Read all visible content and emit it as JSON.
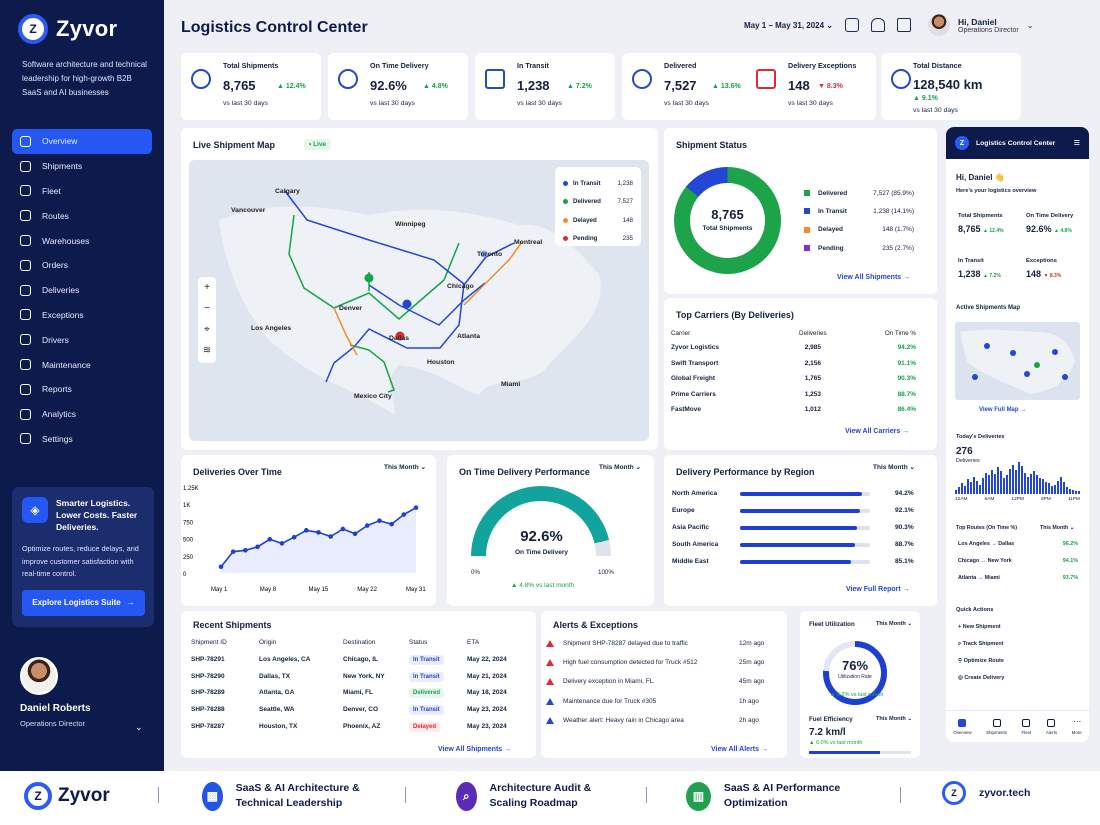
{
  "brand": {
    "name": "Zyvor",
    "tagline": "Software architecture and technical leadership for high-growth B2B SaaS and AI businesses"
  },
  "nav": [
    "Overview",
    "Shipments",
    "Fleet",
    "Routes",
    "Warehouses",
    "Orders",
    "Deliveries",
    "Exceptions",
    "Drivers",
    "Maintenance",
    "Reports",
    "Analytics",
    "Settings"
  ],
  "promo": {
    "title": "Smarter Logistics. Lower Costs. Faster Deliveries.",
    "text": "Optimize routes, reduce delays, and improve customer satisfaction with real-time control.",
    "button": "Explore Logistics Suite"
  },
  "profile": {
    "name": "Daniel Roberts",
    "role": "Operations Director"
  },
  "header": {
    "title": "Logistics Control Center",
    "date_range": "May 1 – May 31, 2024",
    "user_greeting": "Hi, Daniel",
    "user_role": "Operations Director"
  },
  "kpis": [
    {
      "label": "Total Shipments",
      "value": "8,765",
      "change": "▲ 12.4%",
      "sub": "vs last 30 days"
    },
    {
      "label": "On Time Delivery",
      "value": "92.6%",
      "change": "▲ 4.8%",
      "sub": "vs last 30 days"
    },
    {
      "label": "In Transit",
      "value": "1,238",
      "change": "▲ 7.2%",
      "sub": "vs last 30 days"
    },
    {
      "label": "Delivered",
      "value": "7,527",
      "change": "▲ 13.6%",
      "sub": "vs last 30 days"
    },
    {
      "label": "Delivery Exceptions",
      "value": "148",
      "change": "▼ 8.3%",
      "sub": "vs last 30 days"
    },
    {
      "label": "Total Distance",
      "value": "128,540 km",
      "change": "▲ 9.1%",
      "sub": "vs last 30 days"
    }
  ],
  "map": {
    "title": "Live Shipment Map",
    "badge": "• Live",
    "cities": [
      "Calgary",
      "Winnipeg",
      "Vancouver",
      "Toronto",
      "Montreal",
      "Chicago",
      "Denver",
      "Los Angeles",
      "Dallas",
      "Atlanta",
      "Houston",
      "Miami",
      "Mexico City"
    ],
    "legend": [
      {
        "label": "In Transit",
        "value": "1,238",
        "color": "#2346d4"
      },
      {
        "label": "Delivered",
        "value": "7,527",
        "color": "#16a34a"
      },
      {
        "label": "Delayed",
        "value": "148",
        "color": "#f28c28"
      },
      {
        "label": "Pending",
        "value": "235",
        "color": "#d72c3a"
      }
    ]
  },
  "status": {
    "title": "Shipment Status",
    "total": "8,765",
    "total_label": "Total Shipments",
    "rows": [
      {
        "label": "Delivered",
        "value": "7,527 (85.9%)",
        "color": "#1da34a"
      },
      {
        "label": "In Transit",
        "value": "1,238 (14.1%)",
        "color": "#2346d4"
      },
      {
        "label": "Delayed",
        "value": "148 (1.7%)",
        "color": "#f28c28"
      },
      {
        "label": "Pending",
        "value": "235 (2.7%)",
        "color": "#7b35d8"
      }
    ],
    "link": "View All Shipments →"
  },
  "carriers": {
    "title": "Top Carriers (By Deliveries)",
    "headers": [
      "Carrier",
      "Deliveries",
      "On Time %"
    ],
    "rows": [
      [
        "Zyvor Logistics",
        "2,985",
        "94.2%"
      ],
      [
        "Swift Transport",
        "2,156",
        "91.1%"
      ],
      [
        "Global Freight",
        "1,765",
        "90.3%"
      ],
      [
        "Prime Carriers",
        "1,253",
        "88.7%"
      ],
      [
        "FastMove",
        "1,012",
        "86.4%"
      ]
    ],
    "link": "View All Carriers →"
  },
  "deliveries_chart": {
    "title": "Deliveries Over Time",
    "period": "This Month"
  },
  "chart_data": {
    "type": "line",
    "title": "Deliveries Over Time",
    "xlabel": "",
    "ylabel": "",
    "x_ticks": [
      "May 1",
      "May 8",
      "May 15",
      "May 22",
      "May 31"
    ],
    "y_ticks": [
      "1.25K",
      "1K",
      "750",
      "500",
      "250",
      "0"
    ],
    "ylim": [
      0,
      1250
    ],
    "series": [
      {
        "values": [
          90,
          310,
          330,
          380,
          490,
          430,
          520,
          620,
          590,
          530,
          640,
          570,
          690,
          760,
          710,
          850,
          950
        ]
      }
    ]
  },
  "ontime": {
    "title": "On Time Delivery Performance",
    "period": "This Month",
    "value": "92.6%",
    "label": "On Time Delivery",
    "min": "0%",
    "max": "100%",
    "change": "▲ 4.8% vs last month",
    "fraction": 0.926
  },
  "regions": {
    "title": "Delivery Performance by Region",
    "period": "This Month",
    "rows": [
      {
        "name": "North America",
        "value": "94.2%",
        "pct": 94.2
      },
      {
        "name": "Europe",
        "value": "92.1%",
        "pct": 92.1
      },
      {
        "name": "Asia Pacific",
        "value": "90.3%",
        "pct": 90.3
      },
      {
        "name": "South America",
        "value": "88.7%",
        "pct": 88.7
      },
      {
        "name": "Middle East",
        "value": "85.1%",
        "pct": 85.1
      }
    ],
    "link": "View Full Report →"
  },
  "recent": {
    "title": "Recent Shipments",
    "headers": [
      "Shipment ID",
      "Origin",
      "Destination",
      "Status",
      "ETA"
    ],
    "rows": [
      [
        "SHP-78291",
        "Los Angeles, CA",
        "Chicago, IL",
        "In Transit",
        "May 22, 2024"
      ],
      [
        "SHP-78290",
        "Dallas, TX",
        "New York, NY",
        "In Transit",
        "May 21, 2024"
      ],
      [
        "SHP-78289",
        "Atlanta, GA",
        "Miami, FL",
        "Delivered",
        "May 18, 2024"
      ],
      [
        "SHP-78288",
        "Seattle, WA",
        "Denver, CO",
        "In Transit",
        "May 23, 2024"
      ],
      [
        "SHP-78287",
        "Houston, TX",
        "Phoenix, AZ",
        "Delayed",
        "May 23, 2024"
      ]
    ],
    "link": "View All Shipments →"
  },
  "alerts": {
    "title": "Alerts & Exceptions",
    "rows": [
      {
        "text": "Shipment SHP-78287 delayed due to traffic",
        "time": "12m ago",
        "type": "red"
      },
      {
        "text": "High fuel consumption detected for Truck #512",
        "time": "25m ago",
        "type": "red"
      },
      {
        "text": "Delivery exception in Miami, FL",
        "time": "45m ago",
        "type": "red"
      },
      {
        "text": "Maintenance due for Truck #305",
        "time": "1h ago",
        "type": "blue"
      },
      {
        "text": "Weather alert: Heavy rain in Chicago area",
        "time": "2h ago",
        "type": "blue"
      }
    ],
    "link": "View All Alerts →"
  },
  "fleet": {
    "title": "Fleet Utilization",
    "period": "This Month",
    "value": "76%",
    "label": "Utilization Rate",
    "change": "▲ 6.2% vs last month",
    "fraction": 0.76
  },
  "fuel": {
    "title": "Fuel Efficiency",
    "period": "This Month",
    "value": "7.2 km/l",
    "change": "▲ 6.0% vs last month"
  },
  "mobile": {
    "header": "Logistics Control Center",
    "greeting": "Hi, Daniel 👋",
    "sub": "Here's your logistics overview",
    "kpis": [
      {
        "label": "Total Shipments",
        "value": "8,765",
        "change": "▲ 12.4%"
      },
      {
        "label": "On Time Delivery",
        "value": "92.6%",
        "change": "▲ 4.8%"
      },
      {
        "label": "In Transit",
        "value": "1,238",
        "change": "▲ 7.2%"
      },
      {
        "label": "Exceptions",
        "value": "148",
        "change": "▼ 8.3%"
      }
    ],
    "map_title": "Active Shipments Map",
    "map_link": "View Full Map →",
    "today_title": "Today's Deliveries",
    "today_value": "276",
    "today_label": "Deliveries",
    "bar_values": [
      3,
      5,
      8,
      6,
      11,
      9,
      13,
      10,
      7,
      12,
      16,
      14,
      18,
      15,
      20,
      17,
      12,
      14,
      19,
      22,
      18,
      24,
      21,
      16,
      13,
      15,
      17,
      14,
      12,
      11,
      9,
      8,
      6,
      7,
      10,
      13,
      9,
      5,
      4,
      3,
      2,
      2
    ],
    "ticks": [
      "12AM",
      "6AM",
      "12PM",
      "6PM",
      "11PM"
    ],
    "routes_title": "Top Routes (On Time %)",
    "routes_period": "This Month",
    "routes": [
      {
        "name": "Los Angeles → Dallas",
        "value": "96.2%"
      },
      {
        "name": "Chicago → New York",
        "value": "94.1%"
      },
      {
        "name": "Atlanta → Miami",
        "value": "93.7%"
      }
    ],
    "qa_title": "Quick Actions",
    "actions": [
      "New Shipment",
      "Track Shipment",
      "Optimize Route",
      "Create Delivery"
    ],
    "nav": [
      "Overview",
      "Shipments",
      "Fleet",
      "Alerts",
      "More"
    ]
  },
  "footer": {
    "logo": "Zyvor",
    "items": [
      "SaaS & AI Architecture & Technical Leadership",
      "Architecture Audit & Scaling Roadmap",
      "SaaS & AI Performance Optimization"
    ],
    "site": "zyvor.tech"
  }
}
